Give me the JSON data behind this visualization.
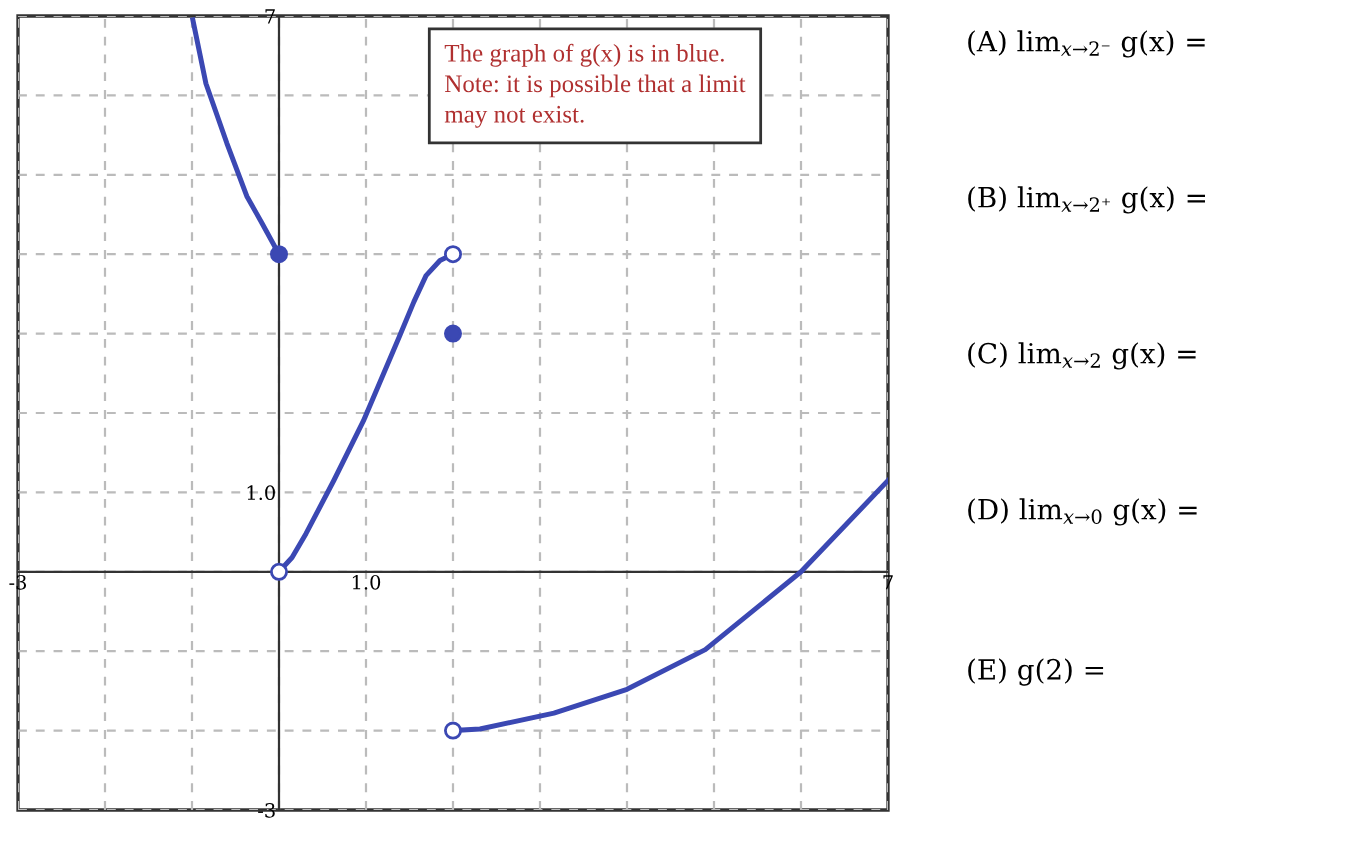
{
  "chart_data": {
    "type": "line",
    "xlim": [
      -3,
      7
    ],
    "ylim": [
      -3,
      7
    ],
    "xticks": [
      {
        "value": -3,
        "label": "-3"
      },
      {
        "value": -2,
        "label": null
      },
      {
        "value": -1,
        "label": null
      },
      {
        "value": 0,
        "label": null
      },
      {
        "value": 1,
        "label": "1.0"
      },
      {
        "value": 2,
        "label": null
      },
      {
        "value": 3,
        "label": null
      },
      {
        "value": 4,
        "label": null
      },
      {
        "value": 5,
        "label": null
      },
      {
        "value": 6,
        "label": null
      },
      {
        "value": 7,
        "label": "7"
      }
    ],
    "yticks": [
      {
        "value": -3,
        "label": "-3"
      },
      {
        "value": -2,
        "label": null
      },
      {
        "value": -1,
        "label": null
      },
      {
        "value": 0,
        "label": null
      },
      {
        "value": 1,
        "label": "1.0"
      },
      {
        "value": 2,
        "label": null
      },
      {
        "value": 3,
        "label": null
      },
      {
        "value": 4,
        "label": null
      },
      {
        "value": 5,
        "label": null
      },
      {
        "value": 6,
        "label": null
      },
      {
        "value": 7,
        "label": "7"
      }
    ],
    "grid": true,
    "series": [
      {
        "color": "#3b48b3",
        "x": [
          -0.99,
          -0.84,
          -0.6,
          -0.37,
          -0.2,
          0
        ],
        "values": [
          6.95,
          6.15,
          5.4,
          4.73,
          4.4,
          4
        ]
      },
      {
        "color": "#3b48b3",
        "x": [
          0,
          0.15,
          0.31,
          0.63,
          0.97,
          1.39,
          1.55,
          1.69,
          1.85,
          2
        ],
        "values": [
          0,
          0.18,
          0.48,
          1.15,
          1.9,
          2.98,
          3.4,
          3.73,
          3.92,
          4
        ]
      },
      {
        "color": "#3b48b3",
        "x": [
          2,
          2.31,
          3.16,
          4,
          4.9,
          6,
          7
        ],
        "values": [
          -2,
          -1.98,
          -1.78,
          -1.48,
          -0.98,
          0,
          1.15
        ]
      },
      {
        "type": "scatter",
        "color": "#3b48b3",
        "marker": "circle",
        "x": [
          0,
          2
        ],
        "values": [
          4,
          3
        ]
      },
      {
        "type": "scatter",
        "color": "#ffffff",
        "marker": "circle",
        "x": [
          0,
          2,
          2
        ],
        "values": [
          0,
          4,
          -2
        ]
      }
    ],
    "annotations": [
      "The graph of g(x) is in blue.\nNote: it is possible that a limit\nmay not exist.",
      "(A) lim$_{x→2⁻}$ g(x) =",
      "(B) lim$_{x→2⁺}$ g(x) =",
      "(C) lim$_{x→2}$ g(x) =",
      "(D) lim$_{x→0}$ g(x) =",
      "(E) g(2) ="
    ]
  }
}
